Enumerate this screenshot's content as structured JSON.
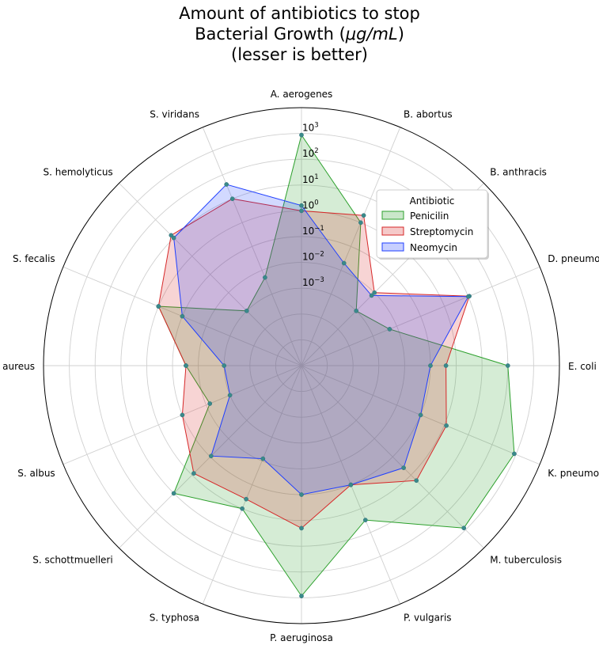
{
  "chart_data": {
    "type": "radar",
    "title": {
      "line1": "Amount of antibiotics to stop",
      "line2_prefix": "Bacterial Growth (",
      "line2_unit": "μg/mL",
      "line2_suffix": ")",
      "line3": "(lesser is better)"
    },
    "radial_scale": "log",
    "rlim": [
      1e-06,
      10000
    ],
    "radial_ticks": [
      {
        "base": "10",
        "exp": "3"
      },
      {
        "base": "10",
        "exp": "2"
      },
      {
        "base": "10",
        "exp": "1"
      },
      {
        "base": "10",
        "exp": "0"
      },
      {
        "base": "10",
        "exp": "−1"
      },
      {
        "base": "10",
        "exp": "−2"
      },
      {
        "base": "10",
        "exp": "−3"
      }
    ],
    "categories": [
      "A. aerogenes",
      "B. abortus",
      "B. anthracis",
      "D. pneumoniae",
      "E. coli",
      "K. pneumoniae",
      "M. tuberculosis",
      "P. vulgaris",
      "P. aeruginosa",
      "S. typhosa",
      "S. schottmuelleri",
      "S. albus",
      "S. aureus",
      "S. fecalis",
      "S. hemolyticus",
      "S. viridans"
    ],
    "series": [
      {
        "name": "Penicilin",
        "color": "#2ca02c",
        "values": [
          870,
          1,
          0.001,
          0.005,
          100,
          850,
          800,
          3,
          850,
          1,
          10,
          0.007,
          0.03,
          1,
          0.001,
          0.005
        ]
      },
      {
        "name": "Streptomycin",
        "color": "#d62728",
        "values": [
          1,
          2,
          0.01,
          11,
          0.4,
          1.2,
          2,
          0.1,
          2,
          0.4,
          0.8,
          0.1,
          0.03,
          1,
          14,
          10
        ]
      },
      {
        "name": "Neomycin",
        "color": "#1f3fff",
        "values": [
          1.6,
          0.02,
          0.007,
          10,
          0.1,
          0.1,
          0.4,
          0.1,
          0.1,
          0.008,
          0.09,
          0.001,
          0.001,
          0.1,
          10,
          40
        ]
      }
    ],
    "legend": {
      "title": "Antibiotic",
      "position": "top-right"
    },
    "grid": true
  }
}
